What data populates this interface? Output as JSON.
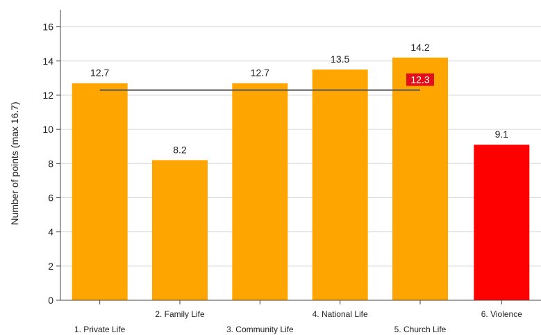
{
  "chart_data": {
    "type": "bar",
    "ylabel": "Number of points (max 16.7)",
    "ylim": [
      0,
      17
    ],
    "yticks": [
      0,
      2,
      4,
      6,
      8,
      10,
      12,
      14,
      16
    ],
    "grid": "horizontal",
    "categories": [
      "1. Private Life",
      "2. Family Life",
      "3. Community Life",
      "4. National Life",
      "5. Church Life",
      "6. Violence"
    ],
    "values": [
      12.7,
      8.2,
      12.7,
      13.5,
      14.2,
      9.1
    ],
    "value_labels": [
      "12.7",
      "8.2",
      "12.7",
      "13.5",
      "14.2",
      "9.1"
    ],
    "bar_colors": [
      "#FFA500",
      "#FFA500",
      "#FFA500",
      "#FFA500",
      "#FFA500",
      "#FF0000"
    ],
    "average_line": {
      "value": 12.3,
      "label": "12.3",
      "from_category": 0,
      "to_category": 4,
      "line_color": "#555555",
      "label_background": "#E0101A",
      "label_color": "#FFFFFF"
    }
  }
}
